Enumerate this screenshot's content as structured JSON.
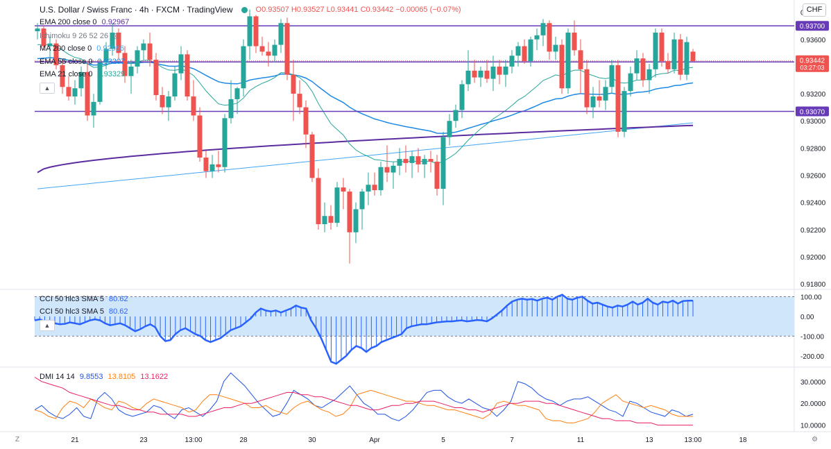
{
  "header": {
    "title": "U.S. Dollar / Swiss Franc · 4h · FXCM · TradingView",
    "ohlc": "O0.93507 H0.93527 L0.93441 C0.93442 −0.00065 (−0.07%)"
  },
  "currency_button": "CHF",
  "legend": {
    "ema200_label": "EMA 200 close 0",
    "ema200_value": "0.92967",
    "ichimoku_label": "Ichimoku 9 26 52 26",
    "ma200_label": "MA 200 close 0",
    "ma200_value": "0.92986",
    "ema55_label": "EMA 55 close 0",
    "ema55_value": "0.93207",
    "ema21_label": "EMA 21 close 0",
    "ema21_value": "0.93329",
    "cci_label": "CCI 50 hlc3 SMA 5",
    "cci_value": "80.62",
    "dmi_label": "DMI 14 14",
    "dmi_plus": "9.8553",
    "dmi_minus": "13.8105",
    "dmi_adx": "13.1622"
  },
  "bottom": {
    "z_label": "Z",
    "gear_icon": "⚙"
  },
  "colors": {
    "up": "#26a69a",
    "down": "#ef5350",
    "hline": "#673ab7",
    "ema21": "#26a69a",
    "ema55": "#1e88e5",
    "ema200": "#5b2c9f",
    "ma200": "#42a5f5",
    "cci_line": "#2962ff",
    "cci_band": "#d0e6fb",
    "dmi_plus": "#1e53e5",
    "dmi_minus": "#ff7f0e",
    "dmi_adx": "#e91e63",
    "price_label": "#ef5350",
    "price_line": "#ef5350"
  },
  "chart_data": {
    "type": "candlestick",
    "title": "U.S. Dollar / Swiss Franc",
    "timeframe": "4h",
    "x_ticks": [
      {
        "label": "21",
        "i": 6
      },
      {
        "label": "23",
        "i": 17
      },
      {
        "label": "13:00",
        "i": 25
      },
      {
        "label": "28",
        "i": 33
      },
      {
        "label": "30",
        "i": 44
      },
      {
        "label": "Apr",
        "i": 54
      },
      {
        "label": "5",
        "i": 65
      },
      {
        "label": "7",
        "i": 76
      },
      {
        "label": "11",
        "i": 87
      },
      {
        "label": "13",
        "i": 98
      },
      {
        "label": "13:00",
        "i": 105
      },
      {
        "label": "18",
        "i": 113
      }
    ],
    "y_ticks": [
      "0.93800",
      "0.93600",
      "0.93400",
      "0.93200",
      "0.93000",
      "0.92800",
      "0.92600",
      "0.92400",
      "0.92200",
      "0.92000",
      "0.91800"
    ],
    "ylim": [
      0.9177,
      0.9389
    ],
    "horizontal_levels": [
      {
        "price": 0.937,
        "label": "0.93700"
      },
      {
        "price": 0.93434,
        "label": "0.93434"
      },
      {
        "price": 0.9307,
        "label": "0.93070"
      }
    ],
    "last_price": {
      "value": "0.93442",
      "countdown": "03:27:03"
    },
    "candles": [
      [
        0.9366,
        0.9372,
        0.936,
        0.9368
      ],
      [
        0.9368,
        0.937,
        0.9352,
        0.9355
      ],
      [
        0.9355,
        0.9362,
        0.9345,
        0.9357
      ],
      [
        0.9357,
        0.936,
        0.9338,
        0.9341
      ],
      [
        0.9341,
        0.9345,
        0.932,
        0.9325
      ],
      [
        0.9325,
        0.9333,
        0.9315,
        0.9318
      ],
      [
        0.9318,
        0.933,
        0.9312,
        0.9324
      ],
      [
        0.9324,
        0.934,
        0.9318,
        0.9336
      ],
      [
        0.9336,
        0.9344,
        0.93,
        0.9304
      ],
      [
        0.9304,
        0.932,
        0.9295,
        0.9314
      ],
      [
        0.9314,
        0.9345,
        0.9312,
        0.9343
      ],
      [
        0.9343,
        0.9358,
        0.9338,
        0.9353
      ],
      [
        0.9353,
        0.9372,
        0.9348,
        0.9365
      ],
      [
        0.9365,
        0.9368,
        0.9345,
        0.935
      ],
      [
        0.935,
        0.9355,
        0.9328,
        0.9333
      ],
      [
        0.9333,
        0.9345,
        0.932,
        0.934
      ],
      [
        0.934,
        0.9355,
        0.9335,
        0.9352
      ],
      [
        0.9352,
        0.936,
        0.9345,
        0.9357
      ],
      [
        0.9357,
        0.9365,
        0.934,
        0.9345
      ],
      [
        0.9345,
        0.935,
        0.9315,
        0.9319
      ],
      [
        0.9319,
        0.9325,
        0.9305,
        0.931
      ],
      [
        0.931,
        0.9322,
        0.93,
        0.9318
      ],
      [
        0.9318,
        0.934,
        0.9315,
        0.9335
      ],
      [
        0.9335,
        0.9355,
        0.933,
        0.9349
      ],
      [
        0.9349,
        0.9352,
        0.9315,
        0.9318
      ],
      [
        0.9318,
        0.933,
        0.93,
        0.9304
      ],
      [
        0.9304,
        0.931,
        0.927,
        0.9273
      ],
      [
        0.9273,
        0.9278,
        0.9258,
        0.9263
      ],
      [
        0.9263,
        0.9275,
        0.9258,
        0.9268
      ],
      [
        0.9268,
        0.9278,
        0.9262,
        0.9266
      ],
      [
        0.9266,
        0.9305,
        0.9262,
        0.9302
      ],
      [
        0.9302,
        0.933,
        0.9298,
        0.9316
      ],
      [
        0.9316,
        0.9325,
        0.9305,
        0.9324
      ],
      [
        0.9324,
        0.936,
        0.9318,
        0.9355
      ],
      [
        0.9355,
        0.9382,
        0.9345,
        0.9377
      ],
      [
        0.9377,
        0.9378,
        0.935,
        0.9355
      ],
      [
        0.9355,
        0.9362,
        0.9348,
        0.9351
      ],
      [
        0.9351,
        0.9358,
        0.934,
        0.9348
      ],
      [
        0.9348,
        0.936,
        0.9343,
        0.9356
      ],
      [
        0.9356,
        0.9375,
        0.935,
        0.9372
      ],
      [
        0.9372,
        0.9376,
        0.933,
        0.9334
      ],
      [
        0.9334,
        0.9345,
        0.93,
        0.932
      ],
      [
        0.932,
        0.933,
        0.9305,
        0.931
      ],
      [
        0.931,
        0.9315,
        0.928,
        0.929
      ],
      [
        0.929,
        0.9292,
        0.9255,
        0.9258
      ],
      [
        0.9258,
        0.9265,
        0.922,
        0.9224
      ],
      [
        0.9224,
        0.924,
        0.9218,
        0.923
      ],
      [
        0.923,
        0.9238,
        0.922,
        0.9225
      ],
      [
        0.9225,
        0.9255,
        0.9222,
        0.9251
      ],
      [
        0.9251,
        0.9258,
        0.9235,
        0.9248
      ],
      [
        0.9248,
        0.925,
        0.9195,
        0.9218
      ],
      [
        0.9218,
        0.924,
        0.921,
        0.9235
      ],
      [
        0.9235,
        0.925,
        0.922,
        0.9248
      ],
      [
        0.9248,
        0.9262,
        0.9238,
        0.9253
      ],
      [
        0.9253,
        0.9262,
        0.9245,
        0.9249
      ],
      [
        0.9249,
        0.927,
        0.9245,
        0.9266
      ],
      [
        0.9266,
        0.9282,
        0.9255,
        0.9262
      ],
      [
        0.9262,
        0.927,
        0.925,
        0.9267
      ],
      [
        0.9267,
        0.928,
        0.926,
        0.9272
      ],
      [
        0.9272,
        0.9282,
        0.9262,
        0.9269
      ],
      [
        0.9269,
        0.9278,
        0.9258,
        0.9274
      ],
      [
        0.9274,
        0.928,
        0.9262,
        0.9268
      ],
      [
        0.9268,
        0.9275,
        0.9258,
        0.9272
      ],
      [
        0.9272,
        0.9278,
        0.9262,
        0.927
      ],
      [
        0.927,
        0.9275,
        0.9245,
        0.925
      ],
      [
        0.925,
        0.9292,
        0.9238,
        0.9288
      ],
      [
        0.9288,
        0.9305,
        0.9282,
        0.93
      ],
      [
        0.93,
        0.9312,
        0.9295,
        0.9308
      ],
      [
        0.9308,
        0.933,
        0.9302,
        0.9327
      ],
      [
        0.9327,
        0.9352,
        0.9322,
        0.9337
      ],
      [
        0.9337,
        0.9345,
        0.9328,
        0.9332
      ],
      [
        0.9332,
        0.934,
        0.9325,
        0.9337
      ],
      [
        0.9337,
        0.9345,
        0.9328,
        0.9331
      ],
      [
        0.9331,
        0.9348,
        0.9322,
        0.934
      ],
      [
        0.934,
        0.9345,
        0.9327,
        0.9334
      ],
      [
        0.9334,
        0.9345,
        0.9325,
        0.934
      ],
      [
        0.934,
        0.9352,
        0.9335,
        0.9348
      ],
      [
        0.9348,
        0.9358,
        0.934,
        0.9355
      ],
      [
        0.9355,
        0.936,
        0.9342,
        0.9344
      ],
      [
        0.9344,
        0.9362,
        0.934,
        0.936
      ],
      [
        0.936,
        0.9368,
        0.9352,
        0.9363
      ],
      [
        0.9363,
        0.9375,
        0.9355,
        0.9372
      ],
      [
        0.9372,
        0.9374,
        0.9345,
        0.9351
      ],
      [
        0.9351,
        0.9362,
        0.9345,
        0.9356
      ],
      [
        0.9356,
        0.936,
        0.932,
        0.9324
      ],
      [
        0.9324,
        0.9368,
        0.932,
        0.9365
      ],
      [
        0.9365,
        0.9374,
        0.9348,
        0.9352
      ],
      [
        0.9352,
        0.936,
        0.932,
        0.9338
      ],
      [
        0.9338,
        0.9345,
        0.9305,
        0.931
      ],
      [
        0.931,
        0.9325,
        0.9302,
        0.9318
      ],
      [
        0.9318,
        0.933,
        0.931,
        0.9315
      ],
      [
        0.9315,
        0.933,
        0.9308,
        0.9325
      ],
      [
        0.9325,
        0.9345,
        0.932,
        0.9341
      ],
      [
        0.9341,
        0.9345,
        0.9288,
        0.9292
      ],
      [
        0.9292,
        0.9325,
        0.9288,
        0.9322
      ],
      [
        0.9322,
        0.934,
        0.9318,
        0.9335
      ],
      [
        0.9335,
        0.9352,
        0.933,
        0.9346
      ],
      [
        0.9346,
        0.935,
        0.9325,
        0.933
      ],
      [
        0.933,
        0.9342,
        0.932,
        0.9338
      ],
      [
        0.9338,
        0.9368,
        0.9332,
        0.9365
      ],
      [
        0.9365,
        0.9368,
        0.934,
        0.9344
      ],
      [
        0.9344,
        0.935,
        0.9335,
        0.9338
      ],
      [
        0.9338,
        0.9365,
        0.9335,
        0.936
      ],
      [
        0.936,
        0.9364,
        0.933,
        0.9334
      ],
      [
        0.9334,
        0.9362,
        0.933,
        0.9358
      ],
      [
        0.9351,
        0.9353,
        0.9344,
        0.9344
      ]
    ],
    "cci": {
      "ylim": [
        -250,
        130
      ],
      "y_ticks": [
        "100.00",
        "0.00",
        "-100.00",
        "-200.00"
      ],
      "bands": [
        100,
        -100
      ],
      "values": [
        -20,
        -15,
        -25,
        -30,
        -35,
        -40,
        -38,
        -30,
        -35,
        -40,
        -30,
        -20,
        -15,
        -20,
        -35,
        -45,
        -40,
        -35,
        -45,
        -60,
        -75,
        -65,
        -50,
        -40,
        -55,
        -100,
        -125,
        -120,
        -90,
        -70,
        -60,
        -75,
        -90,
        -100,
        -120,
        -130,
        -120,
        -110,
        -90,
        -70,
        -60,
        -50,
        -30,
        -10,
        20,
        40,
        30,
        25,
        30,
        20,
        30,
        40,
        55,
        45,
        40,
        -20,
        -60,
        -110,
        -170,
        -230,
        -240,
        -220,
        -200,
        -170,
        -150,
        -160,
        -180,
        -160,
        -150,
        -130,
        -120,
        -110,
        -100,
        -90,
        -60,
        -50,
        -45,
        -40,
        -40,
        -35,
        -30,
        -28,
        -25,
        -25,
        -22,
        -20,
        -25,
        -22,
        -18,
        -20,
        -25,
        -10,
        10,
        30,
        55,
        75,
        85,
        90,
        85,
        88,
        80,
        90,
        95,
        85,
        100,
        110,
        90,
        85,
        95,
        100,
        80,
        65,
        70,
        60,
        50,
        45,
        55,
        50,
        60,
        75,
        60,
        70,
        90,
        70,
        60,
        75,
        70,
        80,
        65,
        78,
        80,
        80
      ],
      "display_points": 110
    },
    "dmi": {
      "ylim": [
        7,
        36
      ],
      "y_ticks": [
        "30.0000",
        "20.0000",
        "10.0000"
      ],
      "series": [
        {
          "name": "+DI",
          "color": "#1e53e5",
          "values": [
            17,
            19,
            16,
            14,
            13,
            15,
            18,
            14,
            13,
            22,
            25,
            22,
            17,
            15,
            14,
            15,
            16,
            19,
            18,
            15,
            13,
            17,
            18,
            16,
            14,
            17,
            21,
            30,
            34,
            31,
            28,
            24,
            20,
            17,
            14,
            15,
            20,
            26,
            24,
            22,
            19,
            18,
            20,
            22,
            25,
            28,
            24,
            20,
            18,
            15,
            15,
            13,
            12,
            14,
            17,
            21,
            25,
            26,
            26,
            23,
            21,
            20,
            22,
            20,
            18,
            17,
            14,
            17,
            21,
            30,
            29,
            27,
            24,
            22,
            21,
            19,
            21,
            22,
            22,
            23,
            21,
            19,
            17,
            16,
            14,
            21,
            20,
            18,
            16,
            15,
            14,
            17,
            16,
            14,
            15
          ]
        },
        {
          "name": "−DI",
          "color": "#ff7f0e",
          "values": [
            17,
            16,
            14,
            13,
            18,
            21,
            20,
            18,
            22,
            20,
            18,
            17,
            21,
            20,
            18,
            17,
            20,
            22,
            21,
            20,
            19,
            18,
            16,
            17,
            21,
            24,
            24,
            23,
            22,
            21,
            20,
            18,
            18,
            19,
            17,
            16,
            15,
            18,
            20,
            21,
            19,
            17,
            16,
            14,
            15,
            18,
            24,
            25,
            26,
            25,
            24,
            23,
            22,
            21,
            21,
            20,
            19,
            19,
            18,
            17,
            17,
            16,
            15,
            14,
            13,
            15,
            20,
            21,
            20,
            19,
            19,
            18,
            17,
            13,
            12,
            12,
            11,
            11,
            12,
            13,
            16,
            20,
            22,
            24,
            21,
            20,
            19,
            18,
            19,
            18,
            17,
            15,
            14,
            14,
            14
          ]
        },
        {
          "name": "ADX",
          "color": "#e91e63",
          "values": [
            32,
            30,
            29,
            28,
            27,
            25,
            24,
            23,
            22,
            21,
            20,
            19,
            19,
            18,
            17,
            17,
            16,
            16,
            15,
            15,
            15,
            15,
            14,
            14,
            15,
            16,
            17,
            18,
            18,
            19,
            20,
            20,
            21,
            22,
            23,
            24,
            25,
            25,
            24,
            24,
            23,
            23,
            22,
            21,
            20,
            19,
            19,
            18,
            17,
            17,
            18,
            19,
            19,
            20,
            20,
            21,
            21,
            21,
            20,
            19,
            18,
            18,
            17,
            17,
            16,
            17,
            18,
            19,
            20,
            20,
            21,
            21,
            21,
            20,
            20,
            19,
            18,
            17,
            16,
            15,
            14,
            13,
            13,
            12,
            12,
            12,
            11,
            11,
            11,
            10,
            10,
            10,
            10,
            10,
            10
          ]
        }
      ]
    }
  }
}
